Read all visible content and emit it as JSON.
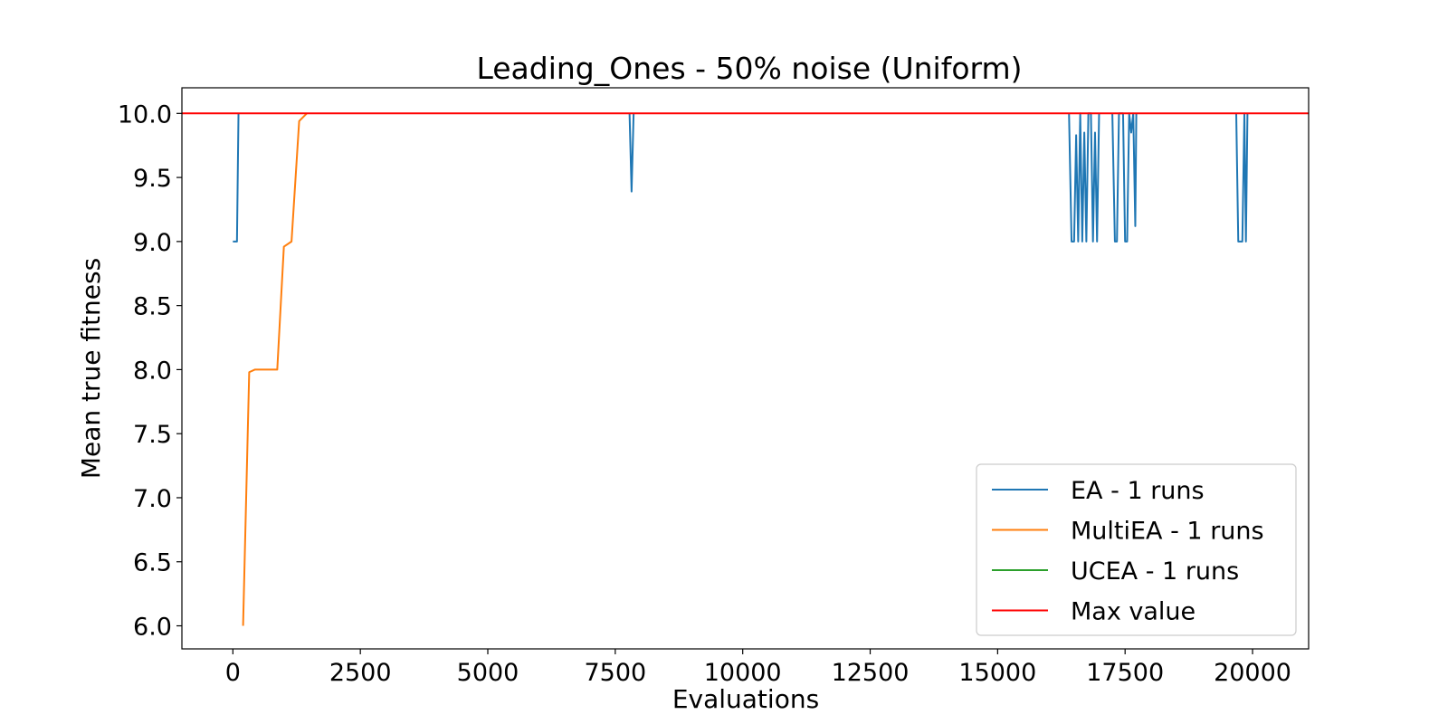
{
  "chart_data": {
    "type": "line",
    "title": "Leading_Ones - 50% noise (Uniform)",
    "xlabel": "Evaluations",
    "ylabel": "Mean true fitness",
    "xlim": [
      -1000,
      21100
    ],
    "ylim": [
      5.82,
      10.2
    ],
    "x_ticks": [
      0,
      2500,
      5000,
      7500,
      10000,
      12500,
      15000,
      17500,
      20000
    ],
    "y_ticks": [
      6.0,
      6.5,
      7.0,
      7.5,
      8.0,
      8.5,
      9.0,
      9.5,
      10.0
    ],
    "x_tick_labels": [
      "0",
      "2500",
      "5000",
      "7500",
      "10000",
      "12500",
      "15000",
      "17500",
      "20000"
    ],
    "y_tick_labels": [
      "6.0",
      "6.5",
      "7.0",
      "7.5",
      "8.0",
      "8.5",
      "9.0",
      "9.5",
      "10.0"
    ],
    "grid": false,
    "legend_position": "lower-right",
    "series": [
      {
        "name": "EA - 1 runs",
        "color": "#1f77b4",
        "segments": [
          [
            [
              0,
              9.0
            ],
            [
              80,
              9.0
            ],
            [
              110,
              10.0
            ]
          ],
          [
            [
              7780,
              10.0
            ],
            [
              7820,
              9.39
            ],
            [
              7860,
              10.0
            ]
          ],
          [
            [
              16400,
              10.0
            ],
            [
              16450,
              9.0
            ],
            [
              16500,
              9.0
            ],
            [
              16540,
              9.83
            ],
            [
              16580,
              9.0
            ],
            [
              16620,
              10.0
            ],
            [
              16660,
              9.0
            ],
            [
              16700,
              9.85
            ],
            [
              16740,
              9.0
            ],
            [
              16780,
              10.0
            ],
            [
              16830,
              10.0
            ],
            [
              16870,
              9.0
            ],
            [
              16910,
              9.85
            ],
            [
              16950,
              9.0
            ],
            [
              16990,
              10.0
            ]
          ],
          [
            [
              17250,
              10.0
            ],
            [
              17300,
              9.0
            ],
            [
              17340,
              9.0
            ],
            [
              17380,
              10.0
            ],
            [
              17460,
              10.0
            ],
            [
              17500,
              9.0
            ],
            [
              17540,
              9.0
            ],
            [
              17580,
              10.0
            ],
            [
              17620,
              9.85
            ],
            [
              17660,
              10.0
            ],
            [
              17700,
              9.12
            ],
            [
              17720,
              10.0
            ]
          ],
          [
            [
              19680,
              10.0
            ],
            [
              19720,
              9.0
            ],
            [
              19800,
              9.0
            ],
            [
              19840,
              10.0
            ],
            [
              19870,
              9.0
            ],
            [
              19900,
              10.0
            ]
          ]
        ]
      },
      {
        "name": "MultiEA - 1 runs",
        "color": "#ff7f0e",
        "segments": [
          [
            [
              200,
              6.0
            ],
            [
              320,
              7.98
            ],
            [
              430,
              8.0
            ],
            [
              870,
              8.0
            ],
            [
              1000,
              8.96
            ],
            [
              1150,
              9.0
            ],
            [
              1300,
              9.94
            ],
            [
              1450,
              10.0
            ]
          ]
        ]
      },
      {
        "name": "UCEA - 1 runs",
        "color": "#2ca02c",
        "segments": []
      },
      {
        "name": "Max value",
        "color": "#ff0000",
        "segments": [
          [
            [
              -1000,
              10.0
            ],
            [
              21100,
              10.0
            ]
          ]
        ]
      }
    ]
  }
}
